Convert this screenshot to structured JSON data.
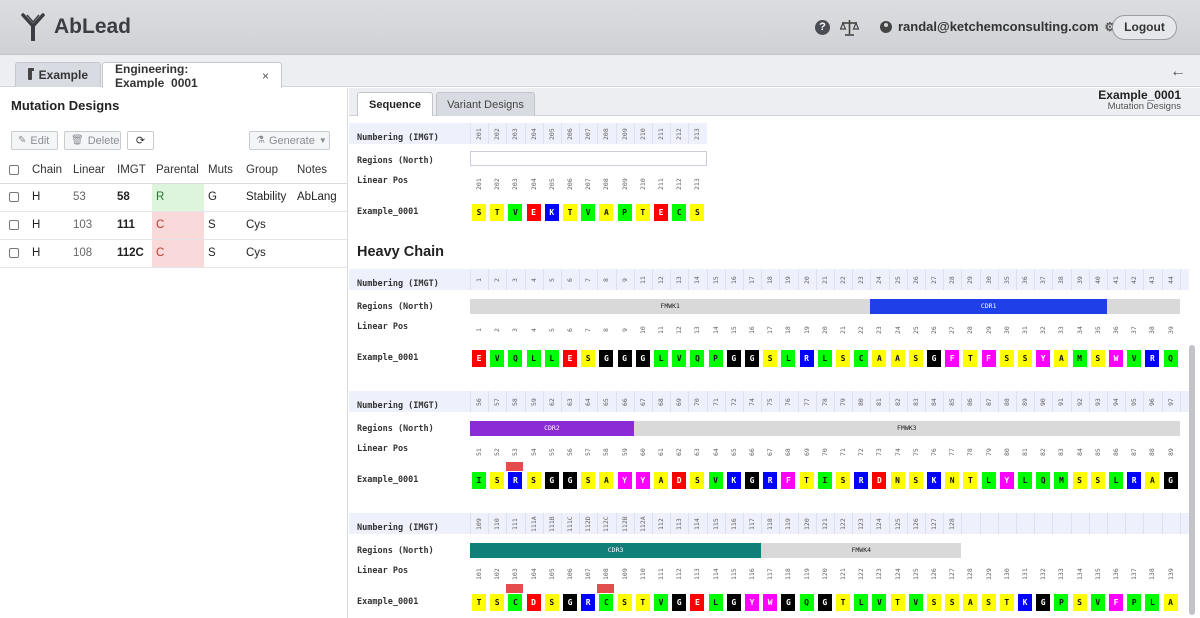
{
  "app": {
    "name": "AbLead"
  },
  "header": {
    "user_email": "randal@ketchemconsulting.com",
    "logout_label": "Logout"
  },
  "tabs": [
    {
      "label": "Example"
    },
    {
      "label": "Engineering: Example_0001",
      "close": "×"
    }
  ],
  "left_panel": {
    "title": "Mutation Designs",
    "toolbar": {
      "edit": "Edit",
      "delete": "Delete",
      "generate": "Generate"
    },
    "columns": [
      "Chain",
      "Linear",
      "IMGT",
      "Parental",
      "Muts",
      "Group",
      "Notes"
    ],
    "rows": [
      {
        "chain": "H",
        "linear": "53",
        "imgt": "58",
        "parental": "R",
        "muts": "G",
        "group": "Stability",
        "notes": "AbLang",
        "parental_status": "green"
      },
      {
        "chain": "H",
        "linear": "103",
        "imgt": "111",
        "parental": "C",
        "muts": "S",
        "group": "Cys",
        "notes": "",
        "parental_status": "red"
      },
      {
        "chain": "H",
        "linear": "108",
        "imgt": "112C",
        "parental": "C",
        "muts": "S",
        "group": "Cys",
        "notes": "",
        "parental_status": "red"
      }
    ]
  },
  "right_panel": {
    "tabs": [
      {
        "label": "Sequence"
      },
      {
        "label": "Variant Designs"
      }
    ],
    "title": "Example_0001",
    "subtitle": "Mutation Designs",
    "row_labels": {
      "numbering": "Numbering (IMGT)",
      "regions": "Regions (North)",
      "linear": "Linear Pos",
      "sequence": "Example_0001"
    },
    "heavy_chain_title": "Heavy Chain",
    "colors": {
      "A": "#ffff00",
      "V": "#00ff00",
      "L": "#00ff00",
      "I": "#00ff00",
      "M": "#00ff00",
      "F": "#ff00ff",
      "W": "#ff00ff",
      "Y": "#ff00ff",
      "G": "#000000",
      "P": "#00ff00",
      "S": "#ffff00",
      "T": "#ffff00",
      "C": "#00ff00",
      "N": "#ffff00",
      "Q": "#00ff00",
      "D": "#ff0000",
      "E": "#ff0000",
      "K": "#0000ff",
      "R": "#0000ff",
      "H": "#0000ff"
    },
    "blocks": [
      {
        "imgt": [
          "201",
          "202",
          "203",
          "204",
          "205",
          "206",
          "207",
          "208",
          "209",
          "210",
          "211",
          "212",
          "213"
        ],
        "linear": [
          "201",
          "202",
          "203",
          "204",
          "205",
          "206",
          "207",
          "208",
          "209",
          "210",
          "211",
          "212",
          "213"
        ],
        "seq": [
          "S",
          "T",
          "V",
          "E",
          "K",
          "T",
          "V",
          "A",
          "P",
          "T",
          "E",
          "C",
          "S"
        ],
        "regions": [],
        "mutated_cols": []
      },
      {
        "imgt": [
          "1",
          "2",
          "3",
          "4",
          "5",
          "6",
          "7",
          "8",
          "9",
          "11",
          "12",
          "13",
          "14",
          "15",
          "16",
          "17",
          "18",
          "19",
          "20",
          "21",
          "22",
          "23",
          "24",
          "25",
          "26",
          "27",
          "28",
          "29",
          "30",
          "35",
          "36",
          "37",
          "38",
          "39",
          "40",
          "41",
          "42",
          "43",
          "44"
        ],
        "linear": [
          "1",
          "2",
          "3",
          "4",
          "5",
          "6",
          "7",
          "8",
          "9",
          "10",
          "11",
          "12",
          "13",
          "14",
          "15",
          "16",
          "17",
          "18",
          "19",
          "20",
          "21",
          "22",
          "23",
          "24",
          "25",
          "26",
          "27",
          "28",
          "29",
          "30",
          "31",
          "32",
          "33",
          "34",
          "35",
          "36",
          "37",
          "38",
          "39"
        ],
        "seq": [
          "E",
          "V",
          "Q",
          "L",
          "L",
          "E",
          "S",
          "G",
          "G",
          "G",
          "L",
          "V",
          "Q",
          "P",
          "G",
          "G",
          "S",
          "L",
          "R",
          "L",
          "S",
          "C",
          "A",
          "A",
          "S",
          "G",
          "F",
          "T",
          "F",
          "S",
          "S",
          "Y",
          "A",
          "M",
          "S",
          "W",
          "V",
          "R",
          "Q"
        ],
        "regions": [
          {
            "name": "FMWK1",
            "start": 0,
            "end": 22,
            "color": "#d9d9d9"
          },
          {
            "name": "CDR1",
            "start": 22,
            "end": 35,
            "color": "#1f3fe8"
          },
          {
            "name": "",
            "start": 35,
            "end": 39,
            "color": "#d9d9d9"
          }
        ],
        "mutated_cols": []
      },
      {
        "imgt": [
          "56",
          "57",
          "58",
          "59",
          "62",
          "63",
          "64",
          "65",
          "66",
          "67",
          "68",
          "69",
          "70",
          "71",
          "72",
          "74",
          "75",
          "76",
          "77",
          "78",
          "79",
          "80",
          "81",
          "82",
          "83",
          "84",
          "85",
          "86",
          "87",
          "88",
          "89",
          "90",
          "91",
          "92",
          "93",
          "94",
          "95",
          "96",
          "97"
        ],
        "linear": [
          "51",
          "52",
          "53",
          "54",
          "55",
          "56",
          "57",
          "58",
          "59",
          "60",
          "61",
          "62",
          "63",
          "64",
          "65",
          "66",
          "67",
          "68",
          "69",
          "70",
          "71",
          "72",
          "73",
          "74",
          "75",
          "76",
          "77",
          "78",
          "79",
          "80",
          "81",
          "82",
          "83",
          "84",
          "85",
          "86",
          "87",
          "88",
          "89"
        ],
        "seq": [
          "I",
          "S",
          "R",
          "S",
          "G",
          "G",
          "S",
          "A",
          "Y",
          "Y",
          "A",
          "D",
          "S",
          "V",
          "K",
          "G",
          "R",
          "F",
          "T",
          "I",
          "S",
          "R",
          "D",
          "N",
          "S",
          "K",
          "N",
          "T",
          "L",
          "Y",
          "L",
          "Q",
          "M",
          "S",
          "S",
          "L",
          "R",
          "A",
          "G"
        ],
        "regions": [
          {
            "name": "CDR2",
            "start": 0,
            "end": 9,
            "color": "#8a2bd6"
          },
          {
            "name": "FMWK3",
            "start": 9,
            "end": 39,
            "color": "#d9d9d9"
          }
        ],
        "mutated_cols": [
          2
        ]
      },
      {
        "imgt": [
          "109",
          "110",
          "111",
          "111A",
          "111B",
          "111C",
          "112D",
          "112C",
          "112B",
          "112A",
          "112",
          "113",
          "114",
          "115",
          "116",
          "117",
          "118",
          "119",
          "120",
          "121",
          "122",
          "123",
          "124",
          "125",
          "126",
          "127",
          "128"
        ],
        "linear": [
          "101",
          "102",
          "103",
          "104",
          "105",
          "106",
          "107",
          "108",
          "109",
          "110",
          "111",
          "112",
          "113",
          "114",
          "115",
          "116",
          "117",
          "118",
          "119",
          "120",
          "121",
          "122",
          "123",
          "124",
          "125",
          "126",
          "127",
          "128",
          "129",
          "130",
          "131",
          "132",
          "133",
          "134",
          "135",
          "136",
          "137",
          "138",
          "139"
        ],
        "seq": [
          "T",
          "S",
          "C",
          "D",
          "S",
          "G",
          "R",
          "C",
          "S",
          "T",
          "V",
          "G",
          "E",
          "L",
          "G",
          "Y",
          "W",
          "G",
          "Q",
          "G",
          "T",
          "L",
          "V",
          "T",
          "V",
          "S",
          "S",
          "A",
          "S",
          "T",
          "K",
          "G",
          "P",
          "S",
          "V",
          "F",
          "P",
          "L",
          "A"
        ],
        "regions": [
          {
            "name": "CDR3",
            "start": 0,
            "end": 16,
            "color": "#0f7f78"
          },
          {
            "name": "FMWK4",
            "start": 16,
            "end": 27,
            "color": "#d9d9d9"
          }
        ],
        "mutated_cols": [
          2,
          7
        ]
      }
    ]
  }
}
